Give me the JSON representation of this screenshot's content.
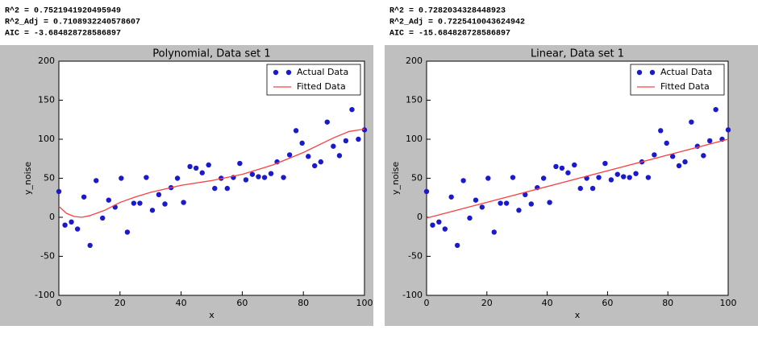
{
  "chart_data": [
    {
      "type": "scatter",
      "title": "Polynomial, Data set 1",
      "xlabel": "x",
      "ylabel": "y_noise",
      "stats": [
        "R^2 =  0.7521941920495949",
        "R^2_Adj =  0.7108932240578607",
        "AIC =  -3.684828728586897"
      ],
      "xlim": [
        0,
        100
      ],
      "ylim": [
        -100,
        200
      ],
      "xticks": [
        0,
        20,
        40,
        60,
        80,
        100
      ],
      "yticks": [
        -100,
        -50,
        0,
        50,
        100,
        150,
        200
      ],
      "legend": "upper right",
      "series": [
        {
          "name": "Actual Data",
          "kind": "scatter",
          "color": "#1a1acc",
          "x": [
            0,
            2.0,
            4.1,
            6.1,
            8.2,
            10.2,
            12.2,
            14.3,
            16.3,
            18.4,
            20.4,
            22.4,
            24.5,
            26.5,
            28.6,
            30.6,
            32.7,
            34.7,
            36.7,
            38.8,
            40.8,
            42.9,
            44.9,
            46.9,
            49.0,
            51.0,
            53.1,
            55.1,
            57.1,
            59.2,
            61.2,
            63.3,
            65.3,
            67.3,
            69.4,
            71.4,
            73.5,
            75.5,
            77.6,
            79.6,
            81.6,
            83.7,
            85.7,
            87.8,
            89.8,
            91.8,
            93.9,
            95.9,
            98.0,
            100
          ],
          "values": [
            33,
            -10,
            -6,
            -15,
            26,
            -36,
            47,
            -1,
            22,
            13,
            50,
            -19,
            18,
            18,
            51,
            9,
            29,
            17,
            38,
            50,
            19,
            65,
            63,
            57,
            67,
            37,
            50,
            37,
            51,
            69,
            48,
            55,
            52,
            51,
            56,
            71,
            51,
            80,
            111,
            95,
            78,
            66,
            71,
            122,
            91,
            79,
            98,
            138,
            100,
            112
          ]
        },
        {
          "name": "Fitted Data",
          "kind": "line",
          "color": "#ff4040",
          "x": [
            0,
            2.5,
            5,
            7.5,
            10,
            15,
            20,
            25,
            30,
            40,
            50,
            60,
            70,
            80,
            90,
            95,
            100
          ],
          "values": [
            14,
            5,
            1,
            0,
            2,
            9,
            19,
            26,
            32,
            41,
            47,
            55,
            67,
            83,
            102,
            110,
            113
          ]
        }
      ]
    },
    {
      "type": "scatter",
      "title": "Linear, Data set 1",
      "xlabel": "x",
      "ylabel": "y_noise",
      "stats": [
        "R^2 =  0.7282034328448923",
        "R^2_Adj =  0.7225410043624942",
        "AIC =  -15.684828728586897"
      ],
      "xlim": [
        0,
        100
      ],
      "ylim": [
        -100,
        200
      ],
      "xticks": [
        0,
        20,
        40,
        60,
        80,
        100
      ],
      "yticks": [
        -100,
        -50,
        0,
        50,
        100,
        150,
        200
      ],
      "legend": "upper right",
      "series": [
        {
          "name": "Actual Data",
          "kind": "scatter",
          "color": "#1a1acc",
          "x": [
            0,
            2.0,
            4.1,
            6.1,
            8.2,
            10.2,
            12.2,
            14.3,
            16.3,
            18.4,
            20.4,
            22.4,
            24.5,
            26.5,
            28.6,
            30.6,
            32.7,
            34.7,
            36.7,
            38.8,
            40.8,
            42.9,
            44.9,
            46.9,
            49.0,
            51.0,
            53.1,
            55.1,
            57.1,
            59.2,
            61.2,
            63.3,
            65.3,
            67.3,
            69.4,
            71.4,
            73.5,
            75.5,
            77.6,
            79.6,
            81.6,
            83.7,
            85.7,
            87.8,
            89.8,
            91.8,
            93.9,
            95.9,
            98.0,
            100
          ],
          "values": [
            33,
            -10,
            -6,
            -15,
            26,
            -36,
            47,
            -1,
            22,
            13,
            50,
            -19,
            18,
            18,
            51,
            9,
            29,
            17,
            38,
            50,
            19,
            65,
            63,
            57,
            67,
            37,
            50,
            37,
            51,
            69,
            48,
            55,
            52,
            51,
            56,
            71,
            51,
            80,
            111,
            95,
            78,
            66,
            71,
            122,
            91,
            79,
            98,
            138,
            100,
            112
          ]
        },
        {
          "name": "Fitted Data",
          "kind": "line",
          "color": "#ff4040",
          "x": [
            0,
            100
          ],
          "values": [
            -1,
            100
          ]
        }
      ]
    }
  ]
}
